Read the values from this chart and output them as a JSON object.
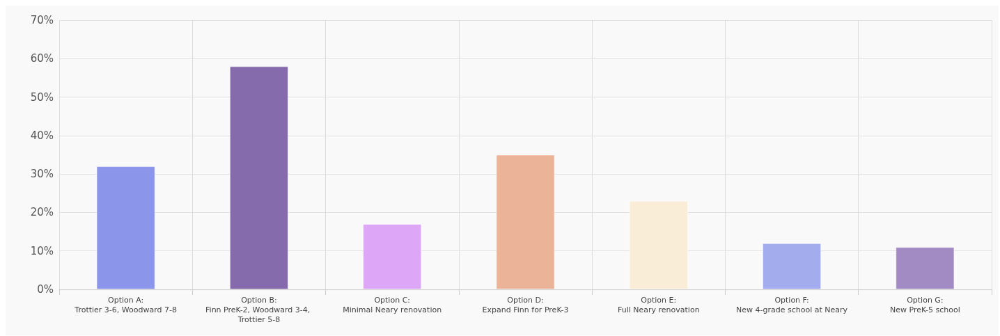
{
  "chart_data": {
    "type": "bar",
    "categories": [
      "Option A:\nTrottier 3-6, Woodward 7-8",
      "Option B:\nFinn PreK-2, Woodward 3-4, Trottier 5-8",
      "Option C:\nMinimal Neary renovation",
      "Option D:\nExpand Finn for PreK-3",
      "Option E:\nFull Neary renovation",
      "Option F:\nNew 4-grade school at Neary",
      "Option G:\nNew PreK-5 school"
    ],
    "values": [
      32,
      58,
      17,
      35,
      23,
      12,
      11
    ],
    "colors": [
      "#8b95e9",
      "#856bab",
      "#dea6f7",
      "#ebb397",
      "#f9edd7",
      "#a3acec",
      "#a28bc3"
    ],
    "ylim": [
      0,
      70
    ],
    "yticks": [
      {
        "value": 0,
        "label": "0%"
      },
      {
        "value": 10,
        "label": "10%"
      },
      {
        "value": 20,
        "label": "20%"
      },
      {
        "value": 30,
        "label": "30%"
      },
      {
        "value": 40,
        "label": "40%"
      },
      {
        "value": 50,
        "label": "50%"
      },
      {
        "value": 60,
        "label": "60%"
      },
      {
        "value": 70,
        "label": "70%"
      }
    ],
    "grid": true
  }
}
